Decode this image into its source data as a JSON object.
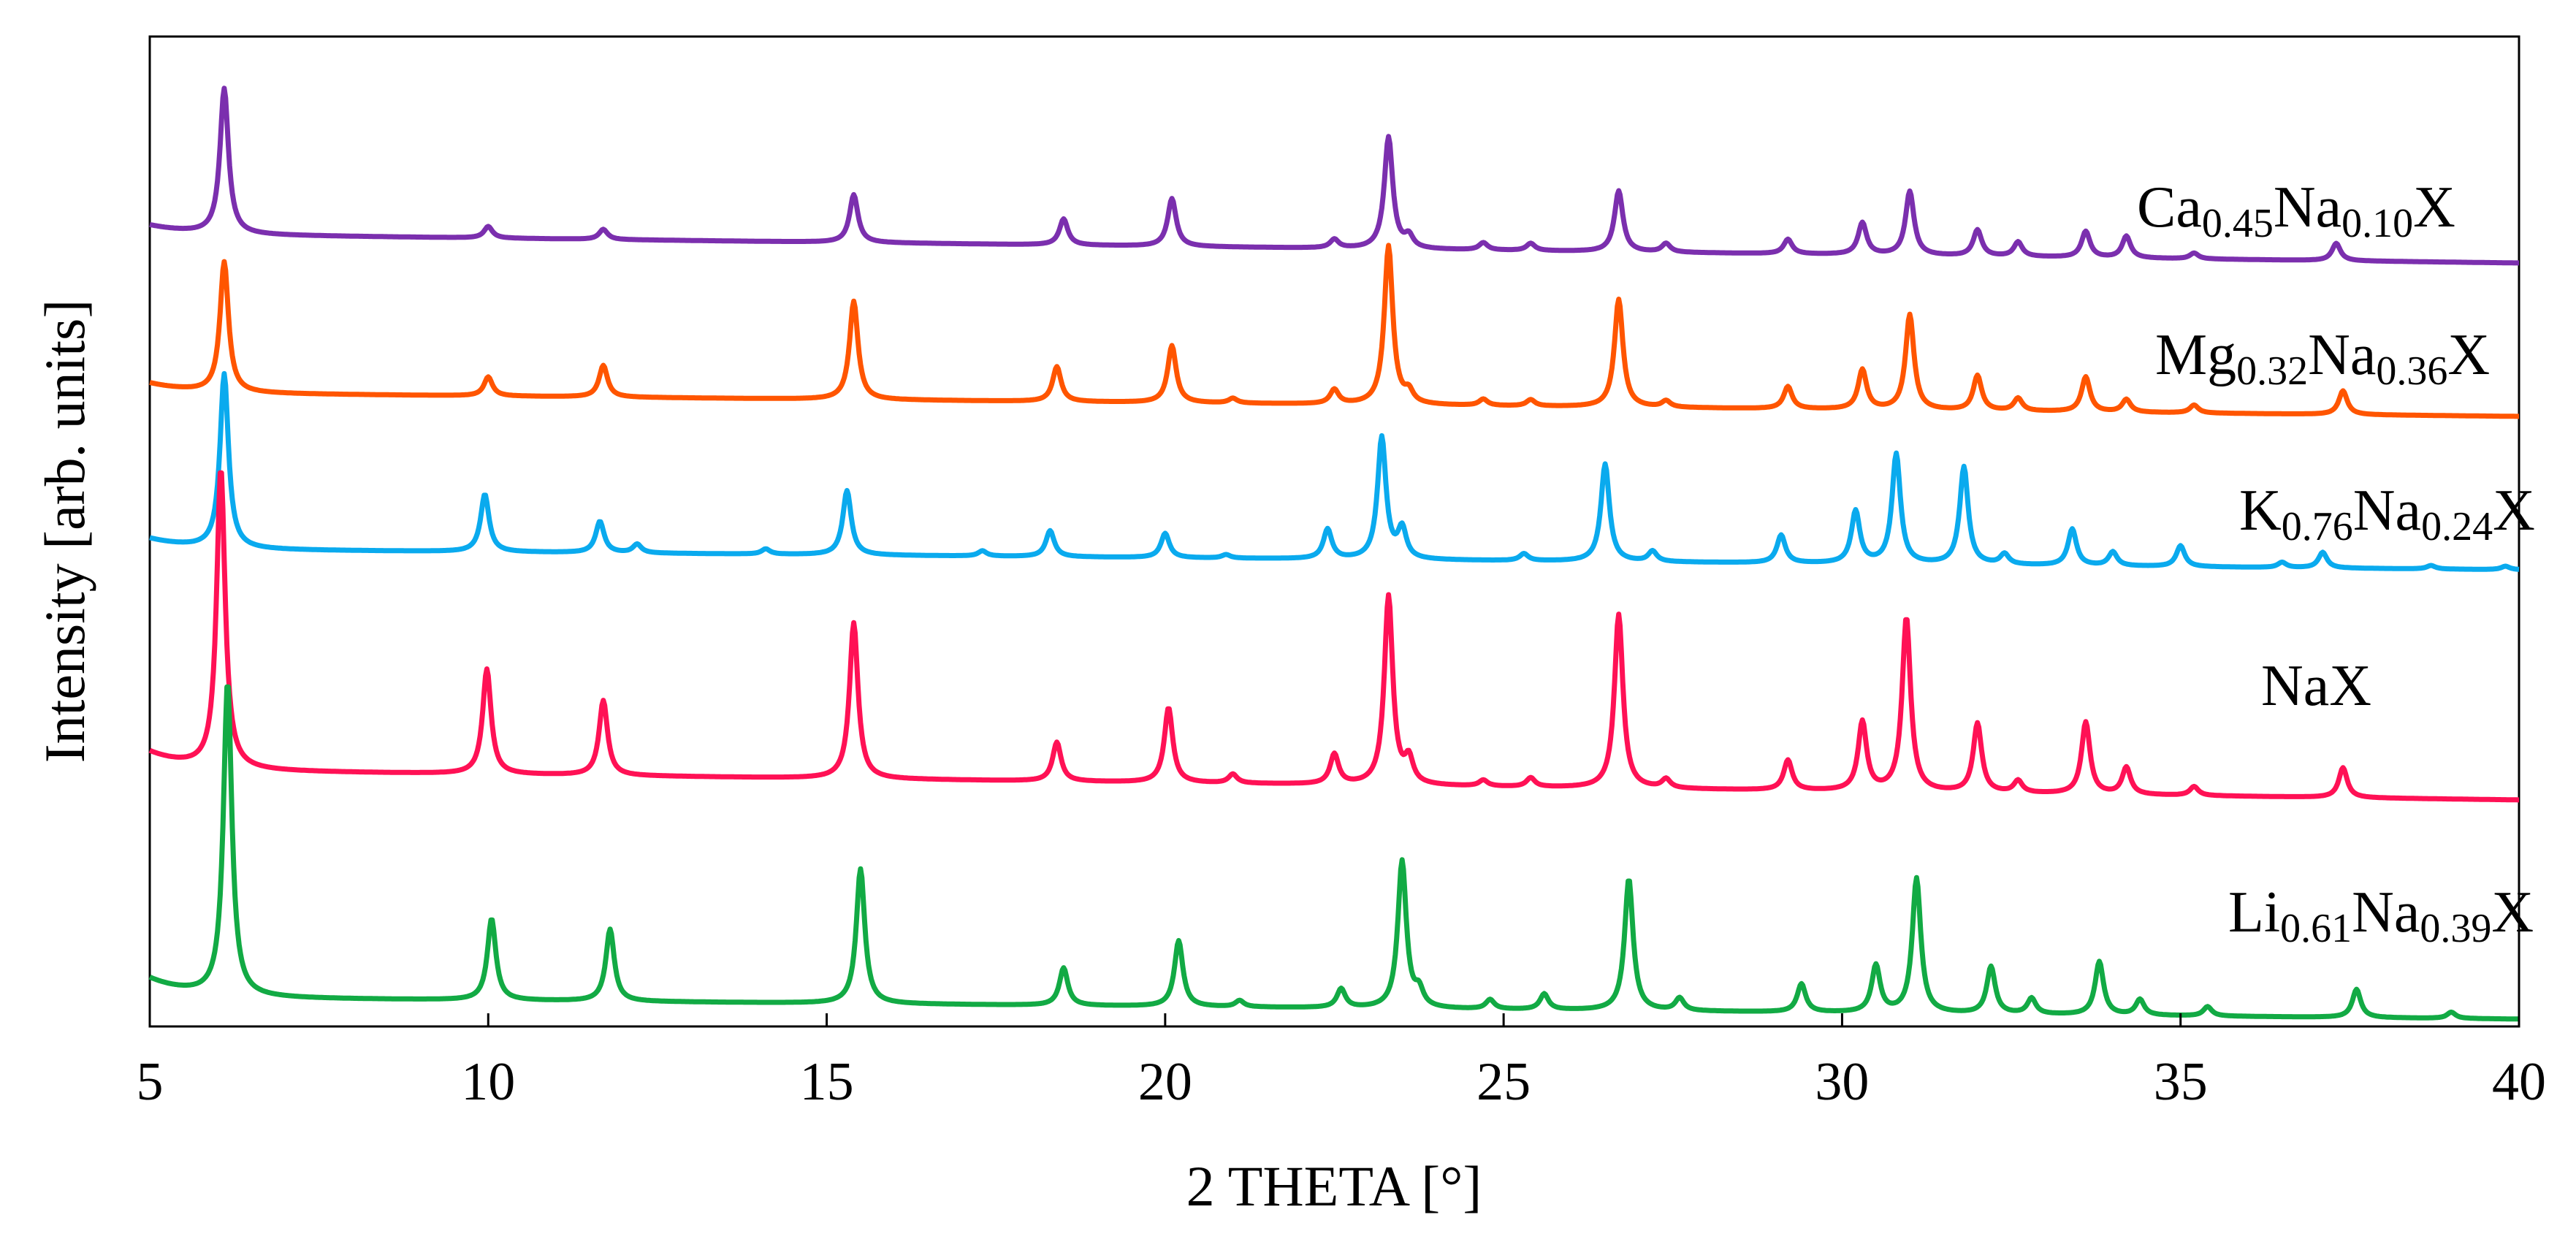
{
  "chart_data": {
    "type": "line",
    "title": "",
    "xlabel": "2 THETA [°]",
    "ylabel": "Intensity [arb. units]",
    "xlim": [
      5,
      40
    ],
    "xticks": [
      5,
      10,
      15,
      20,
      25,
      30,
      35,
      40
    ],
    "xtick_labels": [
      "5",
      "10",
      "15",
      "20",
      "25",
      "30",
      "35",
      "40"
    ],
    "y_ticks_shown": false,
    "grid": false,
    "legend": "inline labels at right",
    "series": [
      {
        "name": "Ca0.45Na0.10X",
        "label_parts": [
          {
            "t": "Ca",
            "sub": false
          },
          {
            "t": "0.45",
            "sub": true
          },
          {
            "t": "Na",
            "sub": false
          },
          {
            "t": "0.10",
            "sub": true
          },
          {
            "t": "X",
            "sub": false
          }
        ],
        "color": "#7B2FAE",
        "offset": 4.0,
        "scale": 0.75,
        "baseline_start": 0.2,
        "baseline_end": 0.0,
        "peaks": [
          [
            6.1,
            1.0
          ],
          [
            10.0,
            0.08
          ],
          [
            11.7,
            0.07
          ],
          [
            15.4,
            0.33
          ],
          [
            18.5,
            0.18
          ],
          [
            20.1,
            0.33
          ],
          [
            22.5,
            0.06
          ],
          [
            23.3,
            0.77
          ],
          [
            23.6,
            0.08
          ],
          [
            24.7,
            0.05
          ],
          [
            25.4,
            0.05
          ],
          [
            26.7,
            0.42
          ],
          [
            27.4,
            0.06
          ],
          [
            29.2,
            0.1
          ],
          [
            30.3,
            0.22
          ],
          [
            31.0,
            0.44
          ],
          [
            32.0,
            0.18
          ],
          [
            32.6,
            0.1
          ],
          [
            33.6,
            0.18
          ],
          [
            34.2,
            0.15
          ],
          [
            35.2,
            0.04
          ],
          [
            37.3,
            0.12
          ]
        ]
      },
      {
        "name": "Mg0.32Na0.36X",
        "label_parts": [
          {
            "t": "Mg",
            "sub": false
          },
          {
            "t": "0.32",
            "sub": true
          },
          {
            "t": "Na",
            "sub": false
          },
          {
            "t": "0.36",
            "sub": true
          },
          {
            "t": "X",
            "sub": false
          }
        ],
        "color": "#FF5500",
        "offset": 3.0,
        "scale": 0.82,
        "baseline_start": 0.15,
        "baseline_end": 0.0,
        "peaks": [
          [
            6.1,
            0.82
          ],
          [
            10.0,
            0.12
          ],
          [
            11.7,
            0.2
          ],
          [
            15.4,
            0.62
          ],
          [
            18.4,
            0.22
          ],
          [
            20.1,
            0.36
          ],
          [
            21.0,
            0.03
          ],
          [
            22.5,
            0.09
          ],
          [
            23.3,
            1.0
          ],
          [
            23.6,
            0.07
          ],
          [
            24.7,
            0.04
          ],
          [
            25.4,
            0.04
          ],
          [
            26.7,
            0.68
          ],
          [
            27.4,
            0.04
          ],
          [
            29.2,
            0.14
          ],
          [
            30.3,
            0.25
          ],
          [
            31.0,
            0.6
          ],
          [
            32.0,
            0.22
          ],
          [
            32.6,
            0.08
          ],
          [
            33.6,
            0.22
          ],
          [
            34.2,
            0.08
          ],
          [
            35.2,
            0.05
          ],
          [
            37.4,
            0.15
          ]
        ]
      },
      {
        "name": "K0.76Na0.24X",
        "label_parts": [
          {
            "t": "K",
            "sub": false
          },
          {
            "t": "0.76",
            "sub": true
          },
          {
            "t": "Na",
            "sub": false
          },
          {
            "t": "0.24",
            "sub": true
          },
          {
            "t": "X",
            "sub": false
          }
        ],
        "color": "#0AAAEE",
        "offset": 2.0,
        "scale": 0.9,
        "baseline_start": 0.12,
        "baseline_end": 0.0,
        "peaks": [
          [
            6.1,
            1.0
          ],
          [
            9.95,
            0.33
          ],
          [
            11.65,
            0.18
          ],
          [
            12.2,
            0.05
          ],
          [
            14.1,
            0.03
          ],
          [
            15.3,
            0.37
          ],
          [
            17.3,
            0.03
          ],
          [
            18.3,
            0.15
          ],
          [
            20.0,
            0.14
          ],
          [
            20.9,
            0.02
          ],
          [
            22.4,
            0.17
          ],
          [
            23.2,
            0.7
          ],
          [
            23.5,
            0.17
          ],
          [
            25.3,
            0.04
          ],
          [
            26.5,
            0.56
          ],
          [
            27.2,
            0.06
          ],
          [
            29.1,
            0.16
          ],
          [
            30.2,
            0.3
          ],
          [
            30.8,
            0.63
          ],
          [
            31.8,
            0.56
          ],
          [
            32.4,
            0.06
          ],
          [
            33.4,
            0.21
          ],
          [
            34.0,
            0.08
          ],
          [
            35.0,
            0.12
          ],
          [
            36.5,
            0.03
          ],
          [
            37.1,
            0.09
          ],
          [
            38.7,
            0.02
          ],
          [
            39.8,
            0.02
          ]
        ]
      },
      {
        "name": "NaX",
        "label_parts": [
          {
            "t": "NaX",
            "sub": false
          }
        ],
        "color": "#FF1155",
        "offset": 1.0,
        "scale": 1.55,
        "baseline_start": 0.1,
        "baseline_end": 0.0,
        "peaks": [
          [
            6.05,
            1.0
          ],
          [
            9.98,
            0.35
          ],
          [
            11.7,
            0.25
          ],
          [
            15.4,
            0.52
          ],
          [
            18.4,
            0.13
          ],
          [
            20.05,
            0.25
          ],
          [
            21.0,
            0.03
          ],
          [
            22.5,
            0.1
          ],
          [
            23.3,
            0.63
          ],
          [
            23.6,
            0.08
          ],
          [
            24.7,
            0.02
          ],
          [
            25.4,
            0.03
          ],
          [
            26.7,
            0.58
          ],
          [
            27.4,
            0.03
          ],
          [
            29.2,
            0.1
          ],
          [
            30.3,
            0.23
          ],
          [
            30.95,
            0.58
          ],
          [
            32.0,
            0.23
          ],
          [
            32.6,
            0.04
          ],
          [
            33.6,
            0.24
          ],
          [
            34.2,
            0.09
          ],
          [
            35.2,
            0.03
          ],
          [
            37.4,
            0.1
          ]
        ]
      },
      {
        "name": "Li0.61Na0.39X",
        "label_parts": [
          {
            "t": "Li",
            "sub": false
          },
          {
            "t": "0.61",
            "sub": true
          },
          {
            "t": "Na",
            "sub": false
          },
          {
            "t": "0.39",
            "sub": true
          },
          {
            "t": "X",
            "sub": false
          }
        ],
        "color": "#12AA44",
        "offset": 0.0,
        "scale": 1.62,
        "baseline_start": 0.07,
        "baseline_end": 0.0,
        "peaks": [
          [
            6.15,
            1.0
          ],
          [
            10.05,
            0.26
          ],
          [
            11.8,
            0.23
          ],
          [
            15.5,
            0.43
          ],
          [
            18.5,
            0.12
          ],
          [
            20.2,
            0.21
          ],
          [
            21.1,
            0.02
          ],
          [
            22.6,
            0.06
          ],
          [
            23.5,
            0.47
          ],
          [
            23.75,
            0.05
          ],
          [
            24.8,
            0.03
          ],
          [
            25.6,
            0.05
          ],
          [
            26.85,
            0.42
          ],
          [
            27.6,
            0.04
          ],
          [
            29.4,
            0.09
          ],
          [
            30.5,
            0.15
          ],
          [
            31.1,
            0.43
          ],
          [
            32.2,
            0.15
          ],
          [
            32.8,
            0.05
          ],
          [
            33.8,
            0.17
          ],
          [
            34.4,
            0.05
          ],
          [
            35.4,
            0.03
          ],
          [
            37.6,
            0.09
          ],
          [
            39.0,
            0.02
          ]
        ]
      }
    ]
  }
}
